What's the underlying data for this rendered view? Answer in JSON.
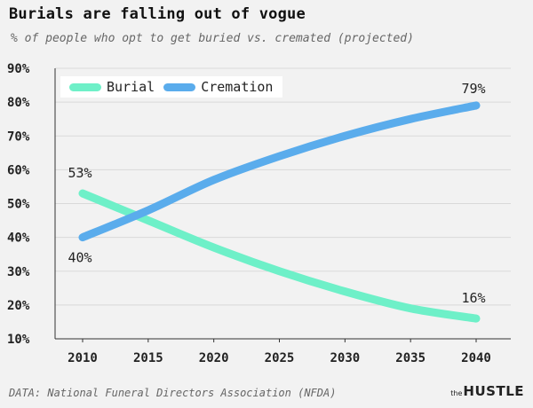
{
  "header": {
    "title": "Burials are falling out of vogue",
    "subtitle": "% of people who opt to get buried vs. cremated (projected)"
  },
  "footer": {
    "source": "DATA: National Funeral Directors Association (NFDA)",
    "brand_small": "the",
    "brand_big": "HUSTLE"
  },
  "colors": {
    "burial": "#6ef0c8",
    "cremation": "#5aacec",
    "grid": "#d9d9d9",
    "axis": "#333333",
    "background": "#f2f2f2"
  },
  "chart_data": {
    "type": "line",
    "title": "Burials are falling out of vogue",
    "subtitle": "% of people who opt to get buried vs. cremated (projected)",
    "x": [
      2010,
      2015,
      2020,
      2025,
      2030,
      2035,
      2040
    ],
    "series": [
      {
        "name": "Burial",
        "values": [
          53,
          45,
          37,
          30,
          24,
          19,
          16
        ]
      },
      {
        "name": "Cremation",
        "values": [
          40,
          48,
          57,
          64,
          70,
          75,
          79
        ]
      }
    ],
    "ylim": [
      10,
      90
    ],
    "yticks": [
      "10%",
      "20%",
      "30%",
      "40%",
      "50%",
      "60%",
      "70%",
      "80%",
      "90%"
    ],
    "xticks": [
      "2010",
      "2015",
      "2020",
      "2025",
      "2030",
      "2035",
      "2040"
    ],
    "annotations": [
      {
        "series": "Burial",
        "x": 2010,
        "label": "53%"
      },
      {
        "series": "Cremation",
        "x": 2010,
        "label": "40%"
      },
      {
        "series": "Cremation",
        "x": 2040,
        "label": "79%"
      },
      {
        "series": "Burial",
        "x": 2040,
        "label": "16%"
      }
    ],
    "grid": true,
    "legend": "top-left"
  }
}
